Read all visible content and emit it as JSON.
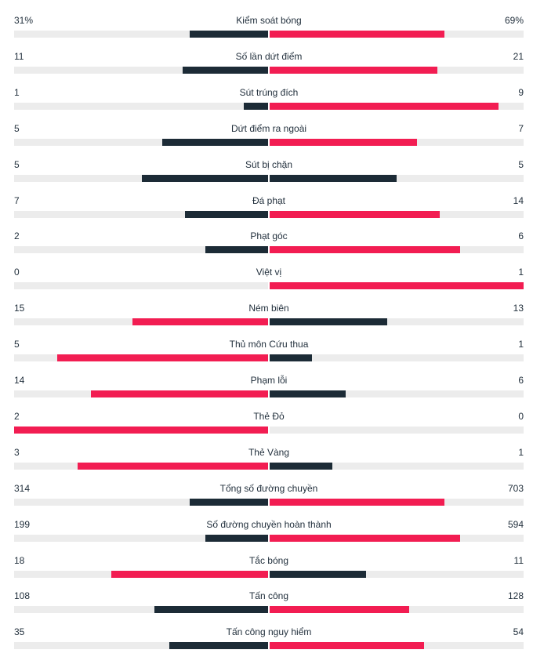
{
  "colors": {
    "dark": "#1c2b36",
    "red": "#f21d52",
    "track": "#ececec"
  },
  "stats": [
    {
      "label": "Kiểm soát bóng",
      "home": "31%",
      "away": "69%",
      "home_fill": 0.31,
      "away_fill": 0.69,
      "home_color": "dark",
      "away_color": "red"
    },
    {
      "label": "Số lần dứt điểm",
      "home": "11",
      "away": "21",
      "home_fill": 0.34,
      "away_fill": 0.66,
      "home_color": "dark",
      "away_color": "red"
    },
    {
      "label": "Sút trúng đích",
      "home": "1",
      "away": "9",
      "home_fill": 0.1,
      "away_fill": 0.9,
      "home_color": "dark",
      "away_color": "red"
    },
    {
      "label": "Dứt điểm ra ngoài",
      "home": "5",
      "away": "7",
      "home_fill": 0.42,
      "away_fill": 0.58,
      "home_color": "dark",
      "away_color": "red"
    },
    {
      "label": "Sút bị chặn",
      "home": "5",
      "away": "5",
      "home_fill": 0.5,
      "away_fill": 0.5,
      "home_color": "dark",
      "away_color": "dark"
    },
    {
      "label": "Đá phạt",
      "home": "7",
      "away": "14",
      "home_fill": 0.33,
      "away_fill": 0.67,
      "home_color": "dark",
      "away_color": "red"
    },
    {
      "label": "Phạt góc",
      "home": "2",
      "away": "6",
      "home_fill": 0.25,
      "away_fill": 0.75,
      "home_color": "dark",
      "away_color": "red"
    },
    {
      "label": "Việt vị",
      "home": "0",
      "away": "1",
      "home_fill": 0.0,
      "away_fill": 1.0,
      "home_color": "dark",
      "away_color": "red"
    },
    {
      "label": "Ném biên",
      "home": "15",
      "away": "13",
      "home_fill": 0.535,
      "away_fill": 0.465,
      "home_color": "red",
      "away_color": "dark"
    },
    {
      "label": "Thủ môn Cứu thua",
      "home": "5",
      "away": "1",
      "home_fill": 0.83,
      "away_fill": 0.17,
      "home_color": "red",
      "away_color": "dark"
    },
    {
      "label": "Phạm lỗi",
      "home": "14",
      "away": "6",
      "home_fill": 0.7,
      "away_fill": 0.3,
      "home_color": "red",
      "away_color": "dark"
    },
    {
      "label": "Thẻ Đỏ",
      "home": "2",
      "away": "0",
      "home_fill": 1.0,
      "away_fill": 0.0,
      "home_color": "red",
      "away_color": "dark"
    },
    {
      "label": "Thẻ Vàng",
      "home": "3",
      "away": "1",
      "home_fill": 0.75,
      "away_fill": 0.25,
      "home_color": "red",
      "away_color": "dark"
    },
    {
      "label": "Tổng số đường chuyền",
      "home": "314",
      "away": "703",
      "home_fill": 0.31,
      "away_fill": 0.69,
      "home_color": "dark",
      "away_color": "red"
    },
    {
      "label": "Số đường chuyền hoàn thành",
      "home": "199",
      "away": "594",
      "home_fill": 0.25,
      "away_fill": 0.75,
      "home_color": "dark",
      "away_color": "red"
    },
    {
      "label": "Tắc bóng",
      "home": "18",
      "away": "11",
      "home_fill": 0.62,
      "away_fill": 0.38,
      "home_color": "red",
      "away_color": "dark"
    },
    {
      "label": "Tấn công",
      "home": "108",
      "away": "128",
      "home_fill": 0.45,
      "away_fill": 0.55,
      "home_color": "dark",
      "away_color": "red"
    },
    {
      "label": "Tấn công nguy hiểm",
      "home": "35",
      "away": "54",
      "home_fill": 0.39,
      "away_fill": 0.61,
      "home_color": "dark",
      "away_color": "red"
    }
  ]
}
